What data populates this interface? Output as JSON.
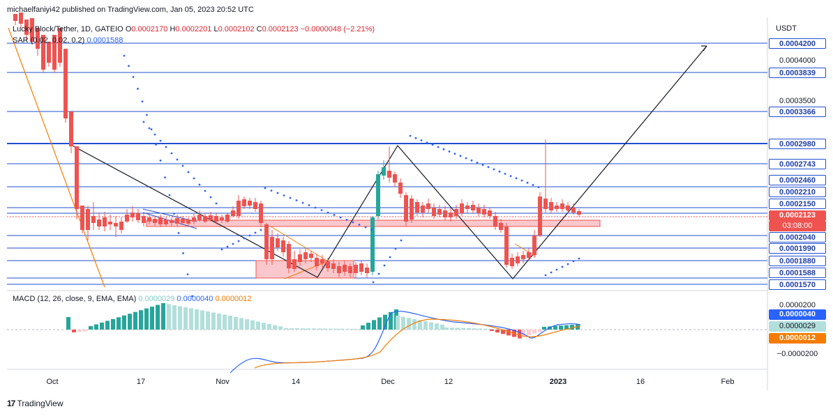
{
  "header": {
    "published": "michaelfaniyi42 published on TradingView.com, Jan 05, 2023 20:52 UTC"
  },
  "legend": {
    "symbol": "Lucky Block/Tether, 1D, GATEIO",
    "o_label": "O",
    "o_value": "0.0002170",
    "h_label": "H",
    "h_value": "0.0002201",
    "l_label": "L",
    "l_value": "0.0002102",
    "c_label": "C",
    "c_value": "0.0002123",
    "change": "−0.0000048 (−2.21%)",
    "sar_label": "SAR (0.02, 0.02, 0.2)",
    "sar_value": "0.0001588",
    "macd_label": "MACD (12, 26, close, 9, EMA, EMA)",
    "macd_hist": "0.0000029",
    "macd_line": "0.0000040",
    "macd_signal": "0.0000012"
  },
  "price_axis": {
    "currency": "USDT",
    "levels": [
      "0.0004200",
      "0.0003839",
      "0.0003366",
      "0.0002980",
      "0.0002743",
      "0.0002460",
      "0.0002210",
      "0.0002150",
      "0.0002040",
      "0.0001990",
      "0.0001880",
      "0.0001588",
      "0.0001570"
    ],
    "plain_ticks": [
      "0.0004000",
      "0.0003500"
    ],
    "last_price": "0.0002123",
    "countdown": "03:08:00"
  },
  "macd_axis": {
    "top": "0.0000200",
    "bottom": "−0.0000200",
    "macd_tag": "0.0000040",
    "hist_tag": "0.0000029",
    "signal_tag": "0.0000012"
  },
  "time_axis": [
    "Oct",
    "17",
    "Nov",
    "14",
    "Dec",
    "12",
    "2023",
    "16",
    "Feb"
  ],
  "footer": {
    "brand": "TradingView"
  },
  "colors": {
    "up": "#26a69a",
    "down": "#ef5350",
    "level_line": "#1f4fcf",
    "zone_fill": "#f8c8cc",
    "sar": "#2962ff",
    "macd": "#2962ff",
    "signal": "#f57c00"
  },
  "chart_data": {
    "type": "candlestick",
    "title": "Lucky Block/Tether, 1D, GATEIO",
    "ylabel": "USDT",
    "horizontal_levels": [
      0.00042,
      0.0003839,
      0.0003366,
      0.000298,
      0.0002743,
      0.000246,
      0.000221,
      0.000215,
      0.000204,
      0.000199,
      0.000188,
      0.0001588,
      0.000157
    ],
    "last_close": 0.0002123,
    "ohlc_last": {
      "open": 0.000217,
      "high": 0.0002201,
      "low": 0.0002102,
      "close": 0.0002123
    },
    "macd": {
      "macd": 4e-06,
      "signal": 1.2e-06,
      "histogram": 2.9e-06
    }
  }
}
